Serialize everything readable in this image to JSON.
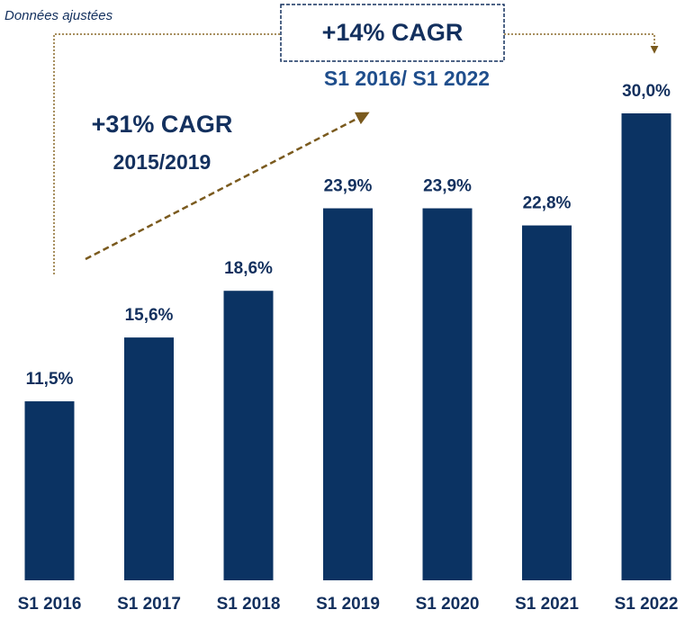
{
  "chart_data": {
    "type": "bar",
    "categories": [
      "S1 2016",
      "S1 2017",
      "S1 2018",
      "S1 2019",
      "S1 2020",
      "S1 2021",
      "S1 2022"
    ],
    "values": [
      11.5,
      15.6,
      18.6,
      23.9,
      23.9,
      22.8,
      30.0
    ],
    "value_labels": [
      "11,5%",
      "15,6%",
      "18,6%",
      "23,9%",
      "23,9%",
      "22,8%",
      "30,0%"
    ],
    "color": "#0b3363",
    "annotations": [
      "Données ajustées",
      "+14% CAGR",
      "S1 2016/ S1 2022",
      "+31% CAGR",
      "2015/2019"
    ]
  }
}
